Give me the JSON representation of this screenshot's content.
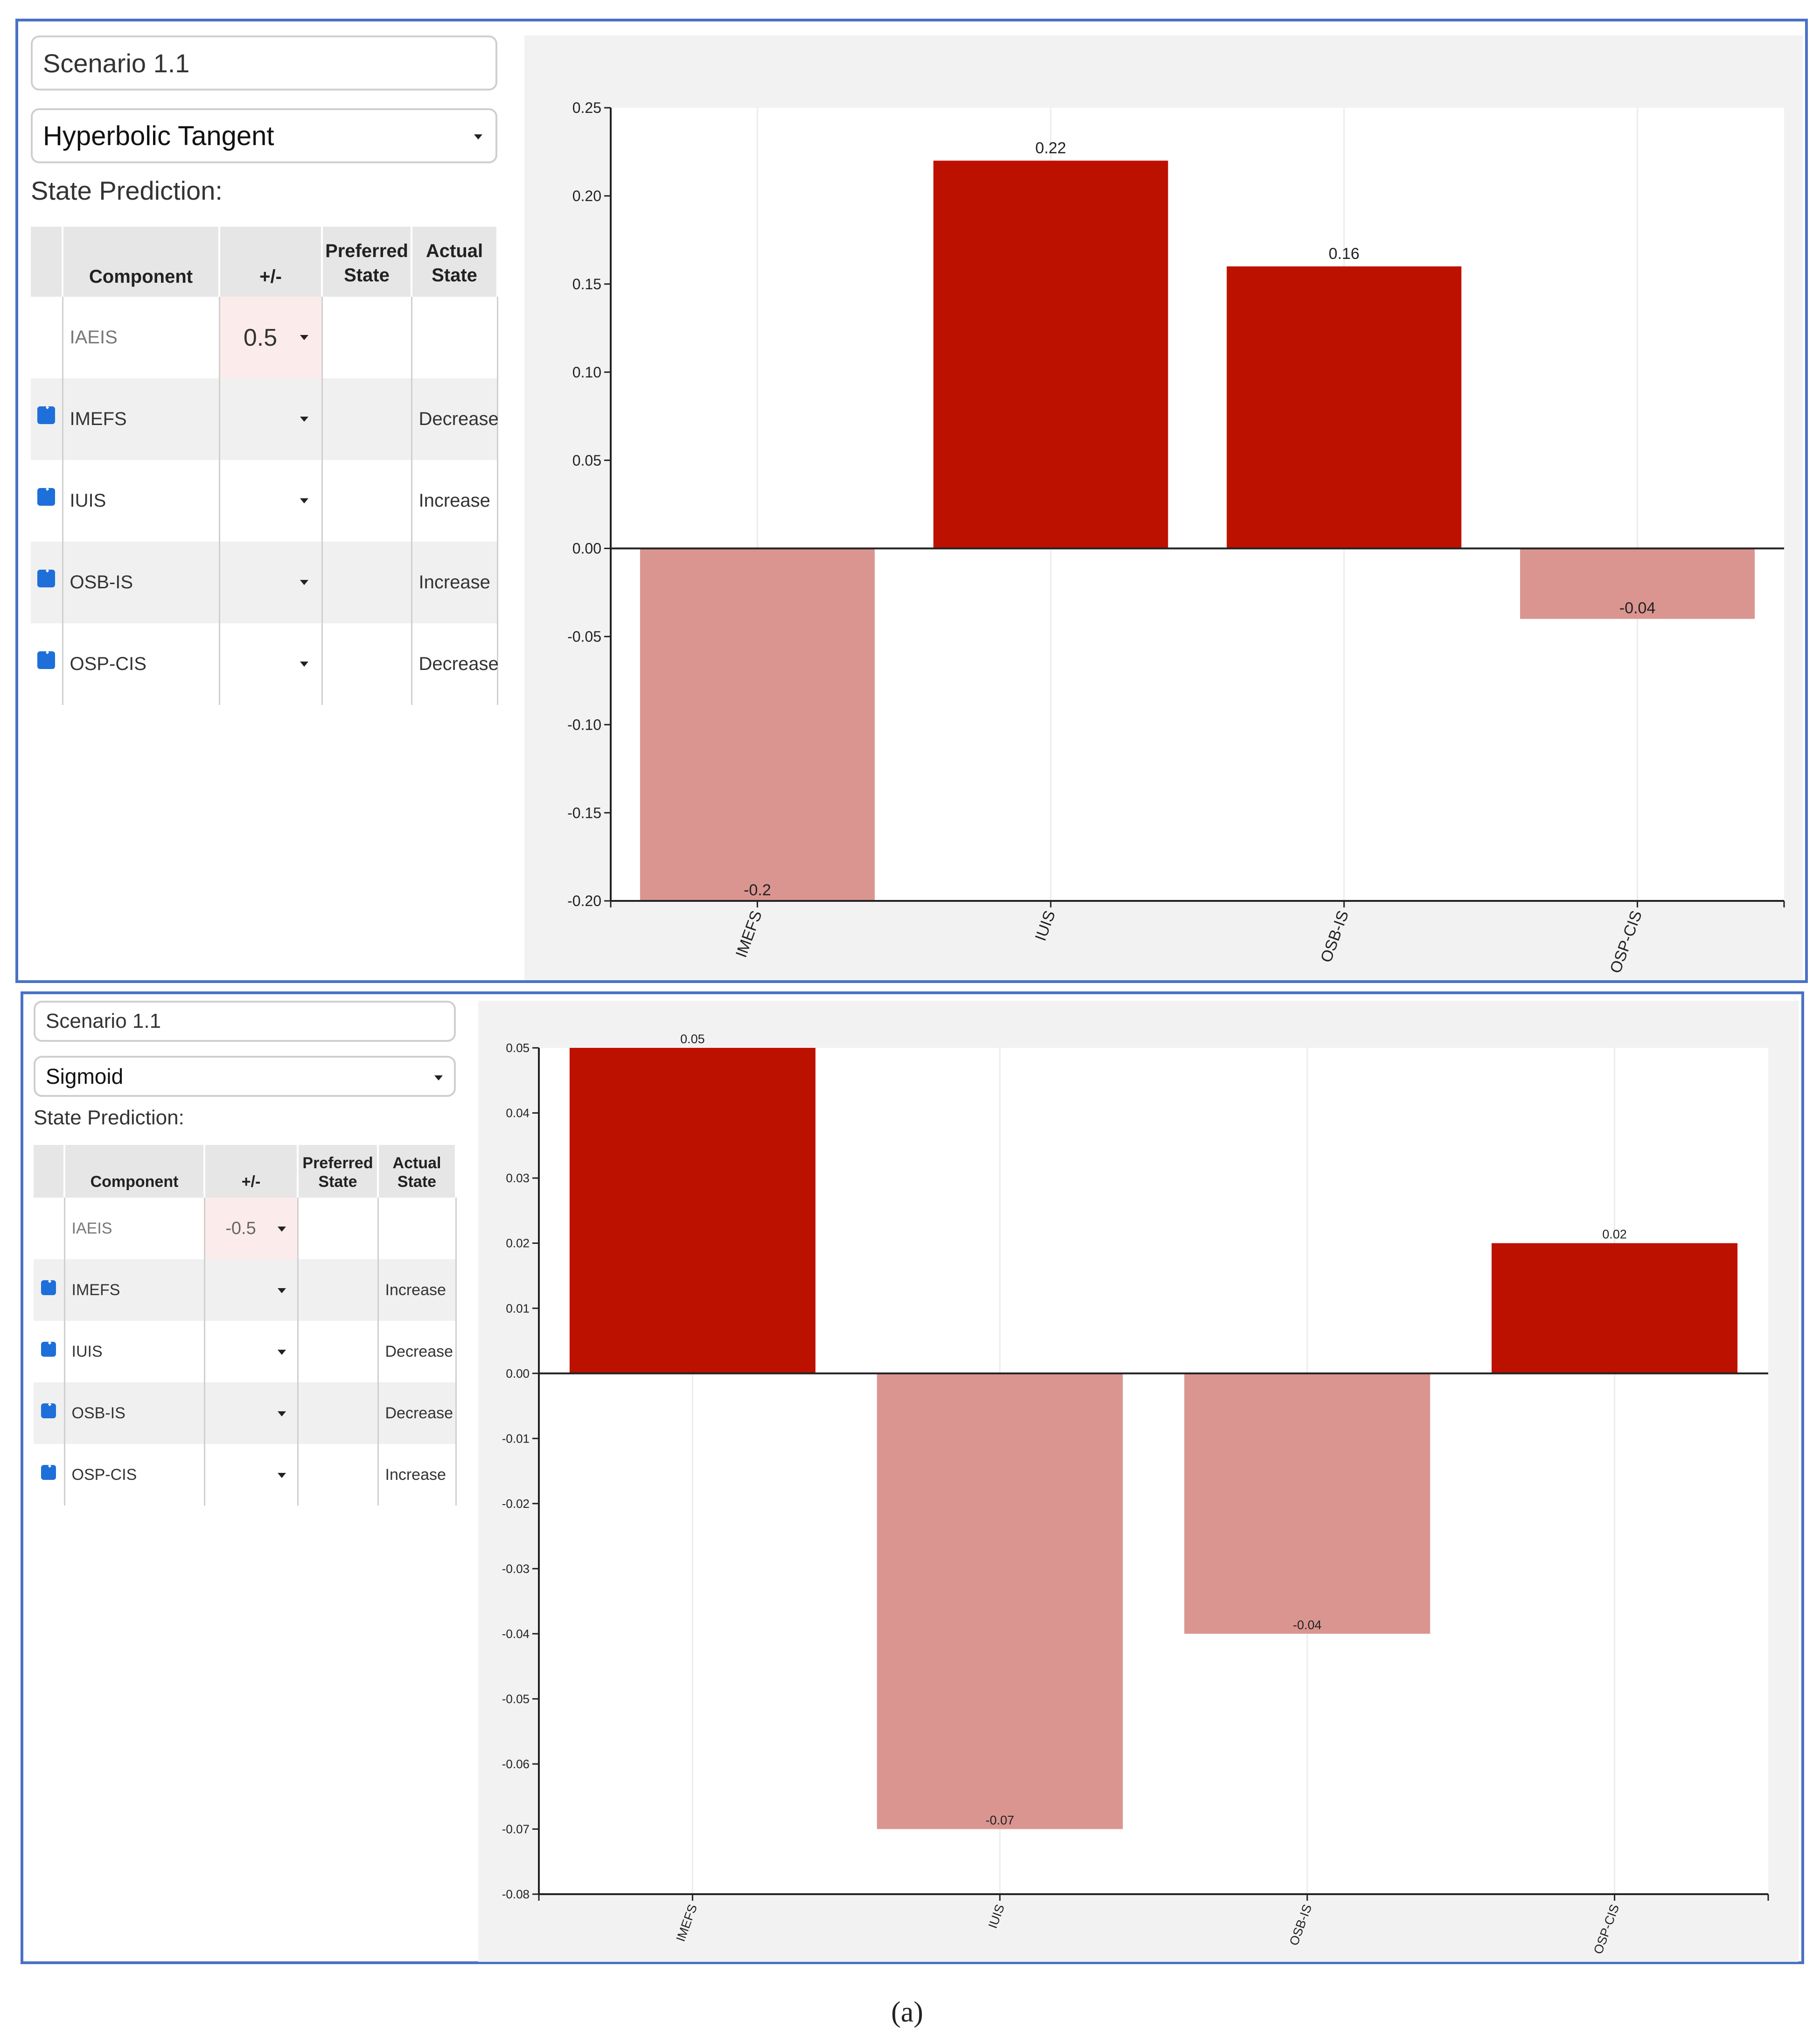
{
  "panels": [
    {
      "scenario_name": "Scenario 1.1",
      "activation_function": "Hyperbolic Tangent",
      "section_label": "State Prediction:",
      "table": {
        "headers": [
          "Component",
          "+/-",
          "Preferred State",
          "Actual State"
        ],
        "rows": [
          {
            "checked": false,
            "component": "IAEIS",
            "value": "0.5",
            "preferred": "",
            "actual": ""
          },
          {
            "checked": true,
            "component": "IMEFS",
            "value": "",
            "preferred": "",
            "actual": "Decrease"
          },
          {
            "checked": true,
            "component": "IUIS",
            "value": "",
            "preferred": "",
            "actual": "Increase"
          },
          {
            "checked": true,
            "component": "OSB-IS",
            "value": "",
            "preferred": "",
            "actual": "Increase"
          },
          {
            "checked": true,
            "component": "OSP-CIS",
            "value": "",
            "preferred": "",
            "actual": "Decrease"
          }
        ]
      },
      "chart_data": {
        "type": "bar",
        "categories": [
          "IMEFS",
          "IUIS",
          "OSB-IS",
          "OSP-CIS"
        ],
        "values": [
          -0.2,
          0.22,
          0.16,
          -0.04
        ],
        "data_labels": [
          "-0.2",
          "0.22",
          "0.16",
          "-0.04"
        ],
        "ylim": [
          -0.2,
          0.25
        ],
        "yticks": [
          "0.25",
          "0.20",
          "0.15",
          "0.10",
          "0.05",
          "0.00",
          "-0.05",
          "-0.10",
          "-0.15",
          "-0.20"
        ],
        "ytick_values": [
          0.25,
          0.2,
          0.15,
          0.1,
          0.05,
          0,
          -0.05,
          -0.1,
          -0.15,
          -0.2
        ],
        "positive_color": "#bd1100",
        "negative_color": "#da9590"
      }
    },
    {
      "scenario_name": "Scenario 1.1",
      "activation_function": "Sigmoid",
      "section_label": "State Prediction:",
      "table": {
        "headers": [
          "Component",
          "+/-",
          "Preferred State",
          "Actual State"
        ],
        "rows": [
          {
            "checked": false,
            "component": "IAEIS",
            "value": "-0.5",
            "preferred": "",
            "actual": ""
          },
          {
            "checked": true,
            "component": "IMEFS",
            "value": "",
            "preferred": "",
            "actual": "Increase"
          },
          {
            "checked": true,
            "component": "IUIS",
            "value": "",
            "preferred": "",
            "actual": "Decrease"
          },
          {
            "checked": true,
            "component": "OSB-IS",
            "value": "",
            "preferred": "",
            "actual": "Decrease"
          },
          {
            "checked": true,
            "component": "OSP-CIS",
            "value": "",
            "preferred": "",
            "actual": "Increase"
          }
        ]
      },
      "chart_data": {
        "type": "bar",
        "categories": [
          "IMEFS",
          "IUIS",
          "OSB-IS",
          "OSP-CIS"
        ],
        "values": [
          0.05,
          -0.07,
          -0.04,
          0.02
        ],
        "data_labels": [
          "0.05",
          "-0.07",
          "-0.04",
          "0.02"
        ],
        "ylim": [
          -0.08,
          0.05
        ],
        "yticks": [
          "0.05",
          "0.04",
          "0.03",
          "0.02",
          "0.01",
          "0.00",
          "-0.01",
          "-0.02",
          "-0.03",
          "-0.04",
          "-0.05",
          "-0.06",
          "-0.07",
          "-0.08"
        ],
        "ytick_values": [
          0.05,
          0.04,
          0.03,
          0.02,
          0.01,
          0,
          -0.01,
          -0.02,
          -0.03,
          -0.04,
          -0.05,
          -0.06,
          -0.07,
          -0.08
        ],
        "positive_color": "#bd1100",
        "negative_color": "#da9590"
      }
    }
  ],
  "caption": "(a)"
}
